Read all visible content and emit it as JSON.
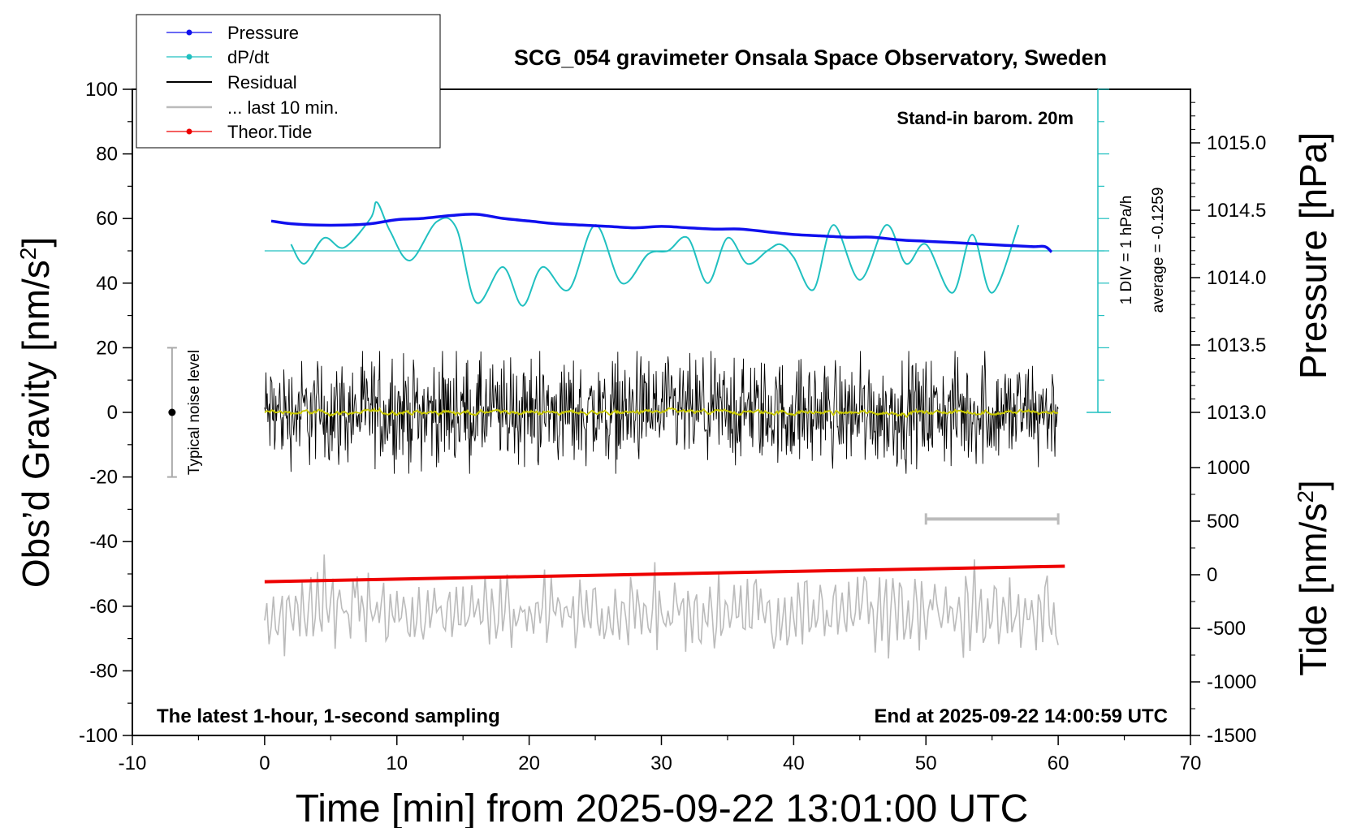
{
  "chart_data": {
    "type": "line",
    "title": "SCG_054 gravimeter Onsala Space Observatory, Sweden",
    "xlabel": "Time [min] from 2025-09-22 13:01:00 UTC",
    "ylabel": "Obs'd Gravity [nm/s²]",
    "y2label_pressure": "Pressure [hPa]",
    "y2label_tide": "Tide [nm/s²]",
    "xlim": [
      -10,
      70
    ],
    "ylim": [
      -100,
      100
    ],
    "x_ticks": [
      "-10",
      "0",
      "10",
      "20",
      "30",
      "40",
      "50",
      "60",
      "70"
    ],
    "y_ticks": [
      "-100",
      "-80",
      "-60",
      "-40",
      "-20",
      "0",
      "20",
      "40",
      "60",
      "80",
      "100"
    ],
    "pressure_axis": {
      "ticks": [
        "1013.0",
        "1013.5",
        "1014.0",
        "1014.5",
        "1015.0"
      ],
      "values": [
        1013.0,
        1013.5,
        1014.0,
        1014.5,
        1015.0
      ]
    },
    "tide_axis": {
      "ticks": [
        "1000",
        "500",
        "0",
        "-500",
        "-1000",
        "-1500"
      ],
      "values": [
        1000,
        500,
        0,
        -500,
        -1000,
        -1500
      ]
    },
    "annotations": {
      "barometer": "Stand-in barom. 20m",
      "div_label": "1 DIV = 1 hPa/h",
      "average_label": "average = -0.1259",
      "noise_label": "Typical noise level",
      "bottom_left": "The latest 1-hour, 1-second sampling",
      "bottom_right": "End at 2025-09-22 14:00:59 UTC"
    },
    "legend": {
      "position": "top-left",
      "entries": [
        "Pressure",
        "dP/dt",
        "Residual",
        "... last 10 min.",
        "Theor.Tide"
      ]
    },
    "colors": {
      "pressure": "#1010ee",
      "dpdt": "#20c0c0",
      "residual": "#000000",
      "residual_smooth": "#c8c800",
      "last10": "#bbbbbb",
      "tide": "#ee0000"
    },
    "series": [
      {
        "name": "Pressure",
        "axis": "pressure_hPa",
        "x": [
          0.5,
          2,
          4,
          6,
          8,
          10,
          12,
          14,
          16,
          18,
          20,
          22,
          24,
          26,
          28,
          30,
          32,
          34,
          36,
          38,
          40,
          42,
          44,
          46,
          48,
          50,
          52,
          54,
          56,
          58,
          59,
          59.5
        ],
        "values": [
          1014.42,
          1014.4,
          1014.39,
          1014.39,
          1014.4,
          1014.43,
          1014.44,
          1014.46,
          1014.47,
          1014.44,
          1014.42,
          1014.4,
          1014.39,
          1014.38,
          1014.37,
          1014.38,
          1014.37,
          1014.36,
          1014.36,
          1014.34,
          1014.32,
          1014.31,
          1014.3,
          1014.3,
          1014.28,
          1014.27,
          1014.26,
          1014.25,
          1014.24,
          1014.23,
          1014.23,
          1014.19
        ]
      },
      {
        "name": "dP/dt",
        "axis": "gravity_equivalent_nm_s2",
        "x": [
          2,
          3,
          4.5,
          6,
          8,
          8.5,
          9.5,
          11,
          13,
          14.5,
          16,
          18,
          19.5,
          21,
          23,
          25,
          27,
          29,
          30.5,
          32,
          33.5,
          35,
          36.5,
          38,
          39,
          40,
          41.5,
          43,
          45,
          47,
          48.5,
          50,
          52,
          53.5,
          55,
          57
        ],
        "values": [
          52,
          46,
          54,
          51,
          60,
          65,
          56,
          47,
          59,
          57,
          34,
          45,
          33,
          45,
          38,
          58,
          40,
          49,
          50,
          54,
          40,
          54,
          46,
          50,
          52,
          48,
          38,
          58,
          41,
          58,
          46,
          52,
          37,
          55,
          37,
          58
        ]
      },
      {
        "name": "Residual",
        "axis": "gravity_nm_s2",
        "x_range": [
          0,
          60
        ],
        "mean": 0,
        "envelope": [
          -19,
          19
        ]
      },
      {
        "name": "... last 10 min.",
        "axis": "gravity_nm_s2",
        "x_range": [
          0,
          60
        ],
        "mean": -62,
        "envelope": [
          -78,
          -44
        ]
      },
      {
        "name": "Theor.Tide",
        "axis": "tide_nm_s2",
        "x": [
          0,
          60.5
        ],
        "values": [
          -65,
          80
        ]
      }
    ]
  }
}
